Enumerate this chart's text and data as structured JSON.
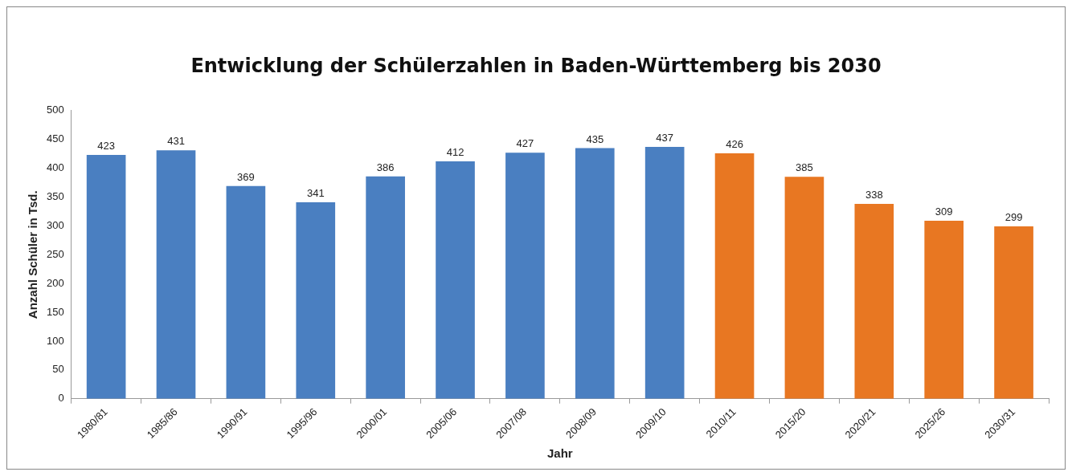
{
  "chart_data": {
    "type": "bar",
    "title": "Entwicklung der Schülerzahlen in Baden-Württemberg bis 2030",
    "xlabel": "Jahr",
    "ylabel": "Anzahl Schüler in Tsd.",
    "categories": [
      "1980/81",
      "1985/86",
      "1990/91",
      "1995/96",
      "2000/01",
      "2005/06",
      "2007/08",
      "2008/09",
      "2009/10",
      "2010/11",
      "2015/20",
      "2020/21",
      "2025/26",
      "2030/31"
    ],
    "values": [
      423,
      431,
      369,
      341,
      386,
      412,
      427,
      435,
      437,
      426,
      385,
      338,
      309,
      299
    ],
    "colors": [
      "#4a7fc1",
      "#4a7fc1",
      "#4a7fc1",
      "#4a7fc1",
      "#4a7fc1",
      "#4a7fc1",
      "#4a7fc1",
      "#4a7fc1",
      "#4a7fc1",
      "#e87722",
      "#e87722",
      "#e87722",
      "#e87722",
      "#e87722"
    ],
    "ylim": [
      0,
      500
    ],
    "yticks": [
      0,
      50,
      100,
      150,
      200,
      250,
      300,
      350,
      400,
      450,
      500
    ],
    "data_labels": true,
    "grid": false,
    "legend": false
  }
}
